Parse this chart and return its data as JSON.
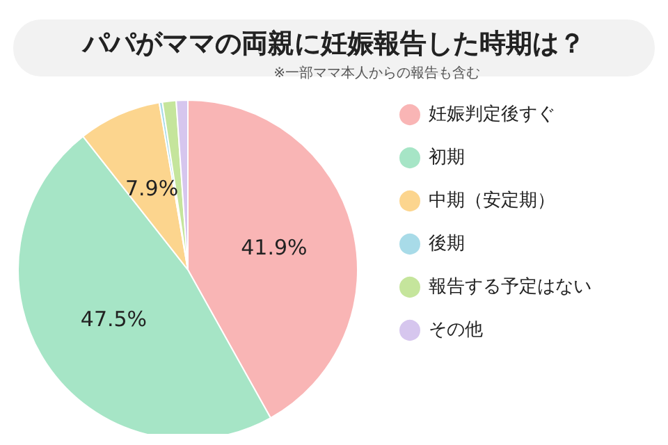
{
  "chart_data": {
    "type": "pie",
    "title": "パパがママの両親に妊娠報告した時期は？",
    "subtitle": "※一部ママ本人からの報告も含む",
    "categories": [
      "妊娠判定後すぐ",
      "初期",
      "中期（安定期）",
      "後期",
      "報告する予定はない",
      "その他"
    ],
    "values": [
      41.9,
      47.5,
      7.9,
      0.3,
      1.3,
      1.1
    ],
    "colors": [
      "#f9b5b5",
      "#a6e5c6",
      "#fcd58e",
      "#a8dbe8",
      "#c5e59c",
      "#d6c6ee"
    ],
    "value_labels": [
      "41.9%",
      "47.5%",
      "7.9%",
      null,
      null,
      null
    ],
    "legend": "right"
  }
}
